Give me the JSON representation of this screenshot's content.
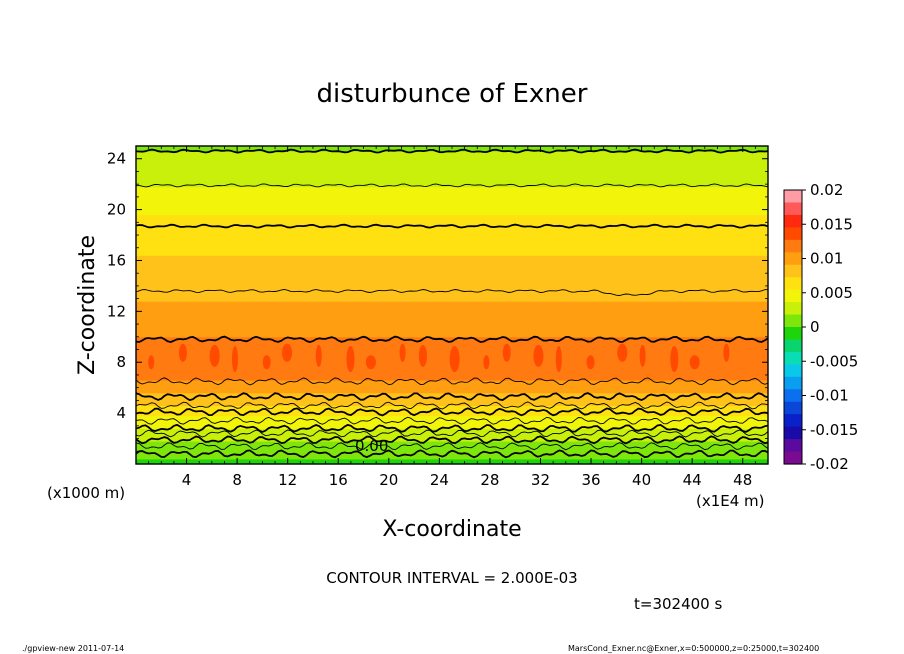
{
  "chart_data": {
    "type": "contour",
    "title": "disturbunce of Exner",
    "xlabel": "X-coordinate",
    "ylabel": "Z-coordinate",
    "x_unit": "(x1E4 m)",
    "y_unit": "(x1000 m)",
    "xlim": [
      0,
      50
    ],
    "ylim": [
      0,
      25
    ],
    "x_ticks": [
      4,
      8,
      12,
      16,
      20,
      24,
      28,
      32,
      36,
      40,
      44,
      48
    ],
    "y_ticks": [
      4,
      8,
      12,
      16,
      20,
      24
    ],
    "x_tick_labels": [
      "4",
      "8",
      "12",
      "16",
      "20",
      "24",
      "28",
      "32",
      "36",
      "40",
      "44",
      "48"
    ],
    "y_tick_labels": [
      "4",
      "8",
      "12",
      "16",
      "20",
      "24"
    ],
    "contour_interval": 0.002,
    "contour_label": "0.00",
    "value_profile_by_height": [
      {
        "z": 0.0,
        "value": -0.0005
      },
      {
        "z": 0.6,
        "value": 0.0005
      },
      {
        "z": 1.5,
        "value": 0.0015
      },
      {
        "z": 2.5,
        "value": 0.003
      },
      {
        "z": 3.5,
        "value": 0.005
      },
      {
        "z": 4.5,
        "value": 0.007
      },
      {
        "z": 5.5,
        "value": 0.009
      },
      {
        "z": 6.7,
        "value": 0.011
      },
      {
        "z": 8.3,
        "value": 0.0125
      },
      {
        "z": 9.8,
        "value": 0.011
      },
      {
        "z": 12.0,
        "value": 0.0095
      },
      {
        "z": 14.0,
        "value": 0.0085
      },
      {
        "z": 16.0,
        "value": 0.0075
      },
      {
        "z": 18.7,
        "value": 0.006
      },
      {
        "z": 20.0,
        "value": 0.0052
      },
      {
        "z": 22.0,
        "value": 0.0035
      },
      {
        "z": 24.0,
        "value": 0.0022
      },
      {
        "z": 25.0,
        "value": 0.0015
      }
    ],
    "contour_levels_z": [
      0.8,
      1.4,
      1.9,
      2.4,
      2.8,
      3.4,
      4.1,
      4.6,
      5.3,
      6.5,
      9.8,
      13.6,
      18.7,
      21.9,
      24.6
    ],
    "colorbar": {
      "range": [
        -0.02,
        0.02
      ],
      "tick_labels": [
        "0.02",
        "0.015",
        "0.01",
        "0.005",
        "0",
        "-0.005",
        "-0.01",
        "-0.015",
        "-0.02"
      ],
      "colors": [
        "#ff9ca6",
        "#ff5a5a",
        "#ff2a10",
        "#ff4a00",
        "#ff7a10",
        "#ff9e10",
        "#ffc21a",
        "#ffe010",
        "#f2f50a",
        "#c8f00a",
        "#7ee60a",
        "#1ed40a",
        "#0ad46e",
        "#0adcb4",
        "#0ac8ea",
        "#0a9ef0",
        "#0a70f0",
        "#0a46d8",
        "#0a20c8",
        "#1a0aa8",
        "#5a0a9e",
        "#7a0a90"
      ]
    }
  },
  "interval_text": "CONTOUR INTERVAL = 2.000E-03",
  "time_text": "t=302400 s",
  "footer_left": "./gpview-new   2011-07-14",
  "footer_right": "MarsCond_Exner.nc@Exner,x=0:500000,z=0:25000,t=302400"
}
